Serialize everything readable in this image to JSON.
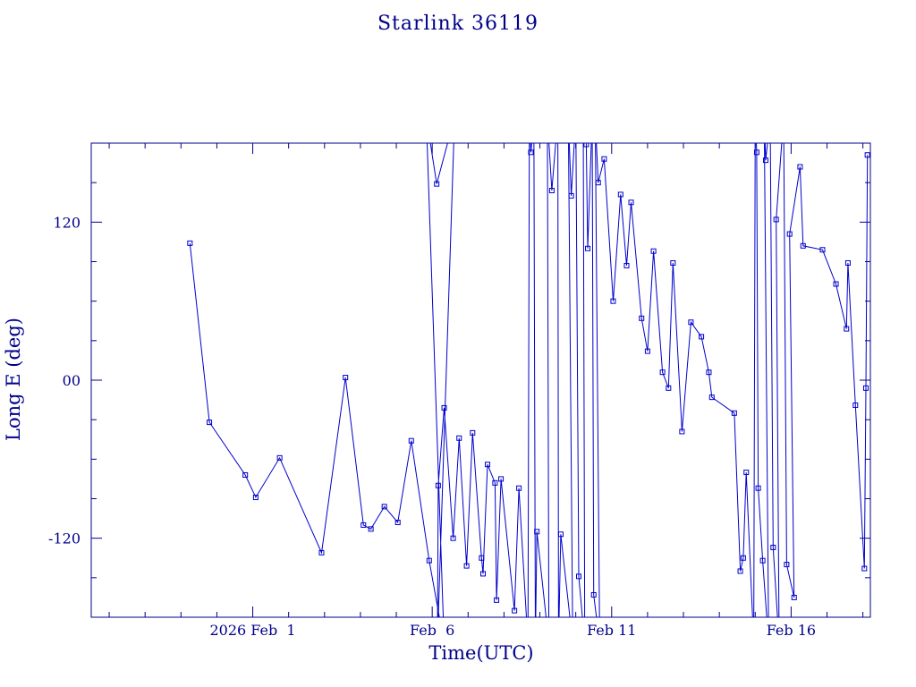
{
  "chart_data": {
    "type": "line",
    "title": "Starlink 36119",
    "xlabel": "Time(UTC)",
    "ylabel": "Long E (deg)",
    "x_unit": "days in 2026",
    "xlim": [
      "2026-01-27T12:00",
      "2026-02-18T05:00"
    ],
    "ylim": [
      -180,
      180
    ],
    "x_ticks": [
      {
        "date": "2026-02-01",
        "label": "2026 Feb  1"
      },
      {
        "date": "2026-02-06",
        "label": "Feb  6"
      },
      {
        "date": "2026-02-11",
        "label": "Feb 11"
      },
      {
        "date": "2026-02-16",
        "label": "Feb 16"
      }
    ],
    "y_ticks": [
      {
        "value": 120,
        "label": "120"
      },
      {
        "value": 0,
        "label": "00"
      },
      {
        "value": -120,
        "label": "-120"
      }
    ],
    "grid": false,
    "marker": "square",
    "line_color": "#0000cc",
    "series": [
      {
        "points": [
          [
            "2026-01-30T06:00",
            104
          ],
          [
            "2026-01-30T19:00",
            -32
          ],
          [
            "2026-01-31T19:00",
            -72
          ],
          [
            "2026-02-01T02:00",
            -89
          ],
          [
            "2026-02-01T18:00",
            -59
          ],
          [
            "2026-02-02T22:00",
            -131
          ],
          [
            "2026-02-03T14:00",
            2
          ],
          [
            "2026-02-04T02:00",
            -110
          ],
          [
            "2026-02-04T07:00",
            -113
          ],
          [
            "2026-02-04T16:00",
            -96
          ],
          [
            "2026-02-05T01:00",
            -108
          ],
          [
            "2026-02-05T10:00",
            -46
          ],
          [
            "2026-02-05T22:00",
            -137
          ],
          [
            "2026-02-06T08:00",
            -200
          ],
          [
            "2026-02-05T20:00",
            200
          ],
          [
            "2026-02-06T03:00",
            149
          ],
          [
            "2026-02-06T15:00",
            200
          ],
          [
            "2026-02-06T03:30",
            -200
          ],
          [
            "2026-02-06T04:00",
            -80
          ],
          [
            "2026-02-06T08:00",
            -21
          ],
          [
            "2026-02-06T14:00",
            -120
          ],
          [
            "2026-02-06T18:00",
            -44
          ],
          [
            "2026-02-06T23:00",
            -141
          ],
          [
            "2026-02-07T03:00",
            -40
          ],
          [
            "2026-02-07T09:00",
            -135
          ],
          [
            "2026-02-07T10:00",
            -147
          ],
          [
            "2026-02-07T13:00",
            -64
          ],
          [
            "2026-02-07T18:00",
            -78
          ],
          [
            "2026-02-07T19:00",
            -167
          ],
          [
            "2026-02-07T22:00",
            -75
          ],
          [
            "2026-02-08T07:00",
            -175
          ],
          [
            "2026-02-08T10:00",
            -82
          ],
          [
            "2026-02-08T16:00",
            -200
          ],
          [
            "2026-02-08T17:00",
            200
          ],
          [
            "2026-02-08T18:00",
            173
          ],
          [
            "2026-02-08T20:00",
            200
          ],
          [
            "2026-02-08T21:00",
            -200
          ],
          [
            "2026-02-08T22:00",
            -115
          ],
          [
            "2026-02-09T06:00",
            -200
          ],
          [
            "2026-02-09T05:00",
            200
          ],
          [
            "2026-02-09T08:00",
            144
          ],
          [
            "2026-02-09T12:00",
            200
          ],
          [
            "2026-02-09T12:30",
            -200
          ],
          [
            "2026-02-09T14:00",
            -117
          ],
          [
            "2026-02-09T22:00",
            -200
          ],
          [
            "2026-02-09T19:00",
            200
          ],
          [
            "2026-02-09T21:00",
            140
          ],
          [
            "2026-02-10T00:00",
            200
          ],
          [
            "2026-02-10T02:00",
            -149
          ],
          [
            "2026-02-10T06:00",
            -200
          ],
          [
            "2026-02-10T05:00",
            200
          ],
          [
            "2026-02-10T07:00",
            179
          ],
          [
            "2026-02-10T08:00",
            100
          ],
          [
            "2026-02-10T11:00",
            200
          ],
          [
            "2026-02-10T12:00",
            -163
          ],
          [
            "2026-02-10T16:00",
            -200
          ],
          [
            "2026-02-10T13:00",
            200
          ],
          [
            "2026-02-10T15:00",
            150
          ],
          [
            "2026-02-10T19:00",
            168
          ],
          [
            "2026-02-11T01:00",
            60
          ],
          [
            "2026-02-11T06:00",
            141
          ],
          [
            "2026-02-11T10:00",
            87
          ],
          [
            "2026-02-11T13:00",
            135
          ],
          [
            "2026-02-11T20:00",
            47
          ],
          [
            "2026-02-12T00:00",
            22
          ],
          [
            "2026-02-12T04:00",
            98
          ],
          [
            "2026-02-12T10:00",
            6
          ],
          [
            "2026-02-12T14:00",
            -6
          ],
          [
            "2026-02-12T17:00",
            89
          ],
          [
            "2026-02-12T23:00",
            -39
          ],
          [
            "2026-02-13T05:00",
            44
          ],
          [
            "2026-02-13T12:00",
            33
          ],
          [
            "2026-02-13T17:00",
            6
          ],
          [
            "2026-02-13T19:00",
            -13
          ],
          [
            "2026-02-14T10:00",
            -25
          ],
          [
            "2026-02-14T14:00",
            -145
          ],
          [
            "2026-02-14T16:00",
            -135
          ],
          [
            "2026-02-14T18:00",
            -70
          ],
          [
            "2026-02-14T23:00",
            -200
          ],
          [
            "2026-02-15T00:00",
            200
          ],
          [
            "2026-02-15T01:00",
            173
          ],
          [
            "2026-02-15T02:00",
            -82
          ],
          [
            "2026-02-15T05:00",
            -137
          ],
          [
            "2026-02-15T09:00",
            -200
          ],
          [
            "2026-02-15T06:00",
            200
          ],
          [
            "2026-02-15T07:00",
            167
          ],
          [
            "2026-02-15T10:00",
            200
          ],
          [
            "2026-02-15T12:00",
            -127
          ],
          [
            "2026-02-15T16:00",
            -200
          ],
          [
            "2026-02-15T14:00",
            122
          ],
          [
            "2026-02-15T19:00",
            200
          ],
          [
            "2026-02-15T21:00",
            -140
          ],
          [
            "2026-02-16T02:00",
            -165
          ],
          [
            "2026-02-15T23:00",
            111
          ],
          [
            "2026-02-16T06:00",
            162
          ],
          [
            "2026-02-16T08:00",
            102
          ],
          [
            "2026-02-16T21:00",
            99
          ],
          [
            "2026-02-17T06:00",
            73
          ],
          [
            "2026-02-17T13:00",
            39
          ],
          [
            "2026-02-17T14:00",
            89
          ],
          [
            "2026-02-17T19:00",
            -19
          ],
          [
            "2026-02-18T01:00",
            -143
          ],
          [
            "2026-02-18T02:00",
            -6
          ],
          [
            "2026-02-18T03:00",
            171
          ]
        ]
      }
    ]
  }
}
